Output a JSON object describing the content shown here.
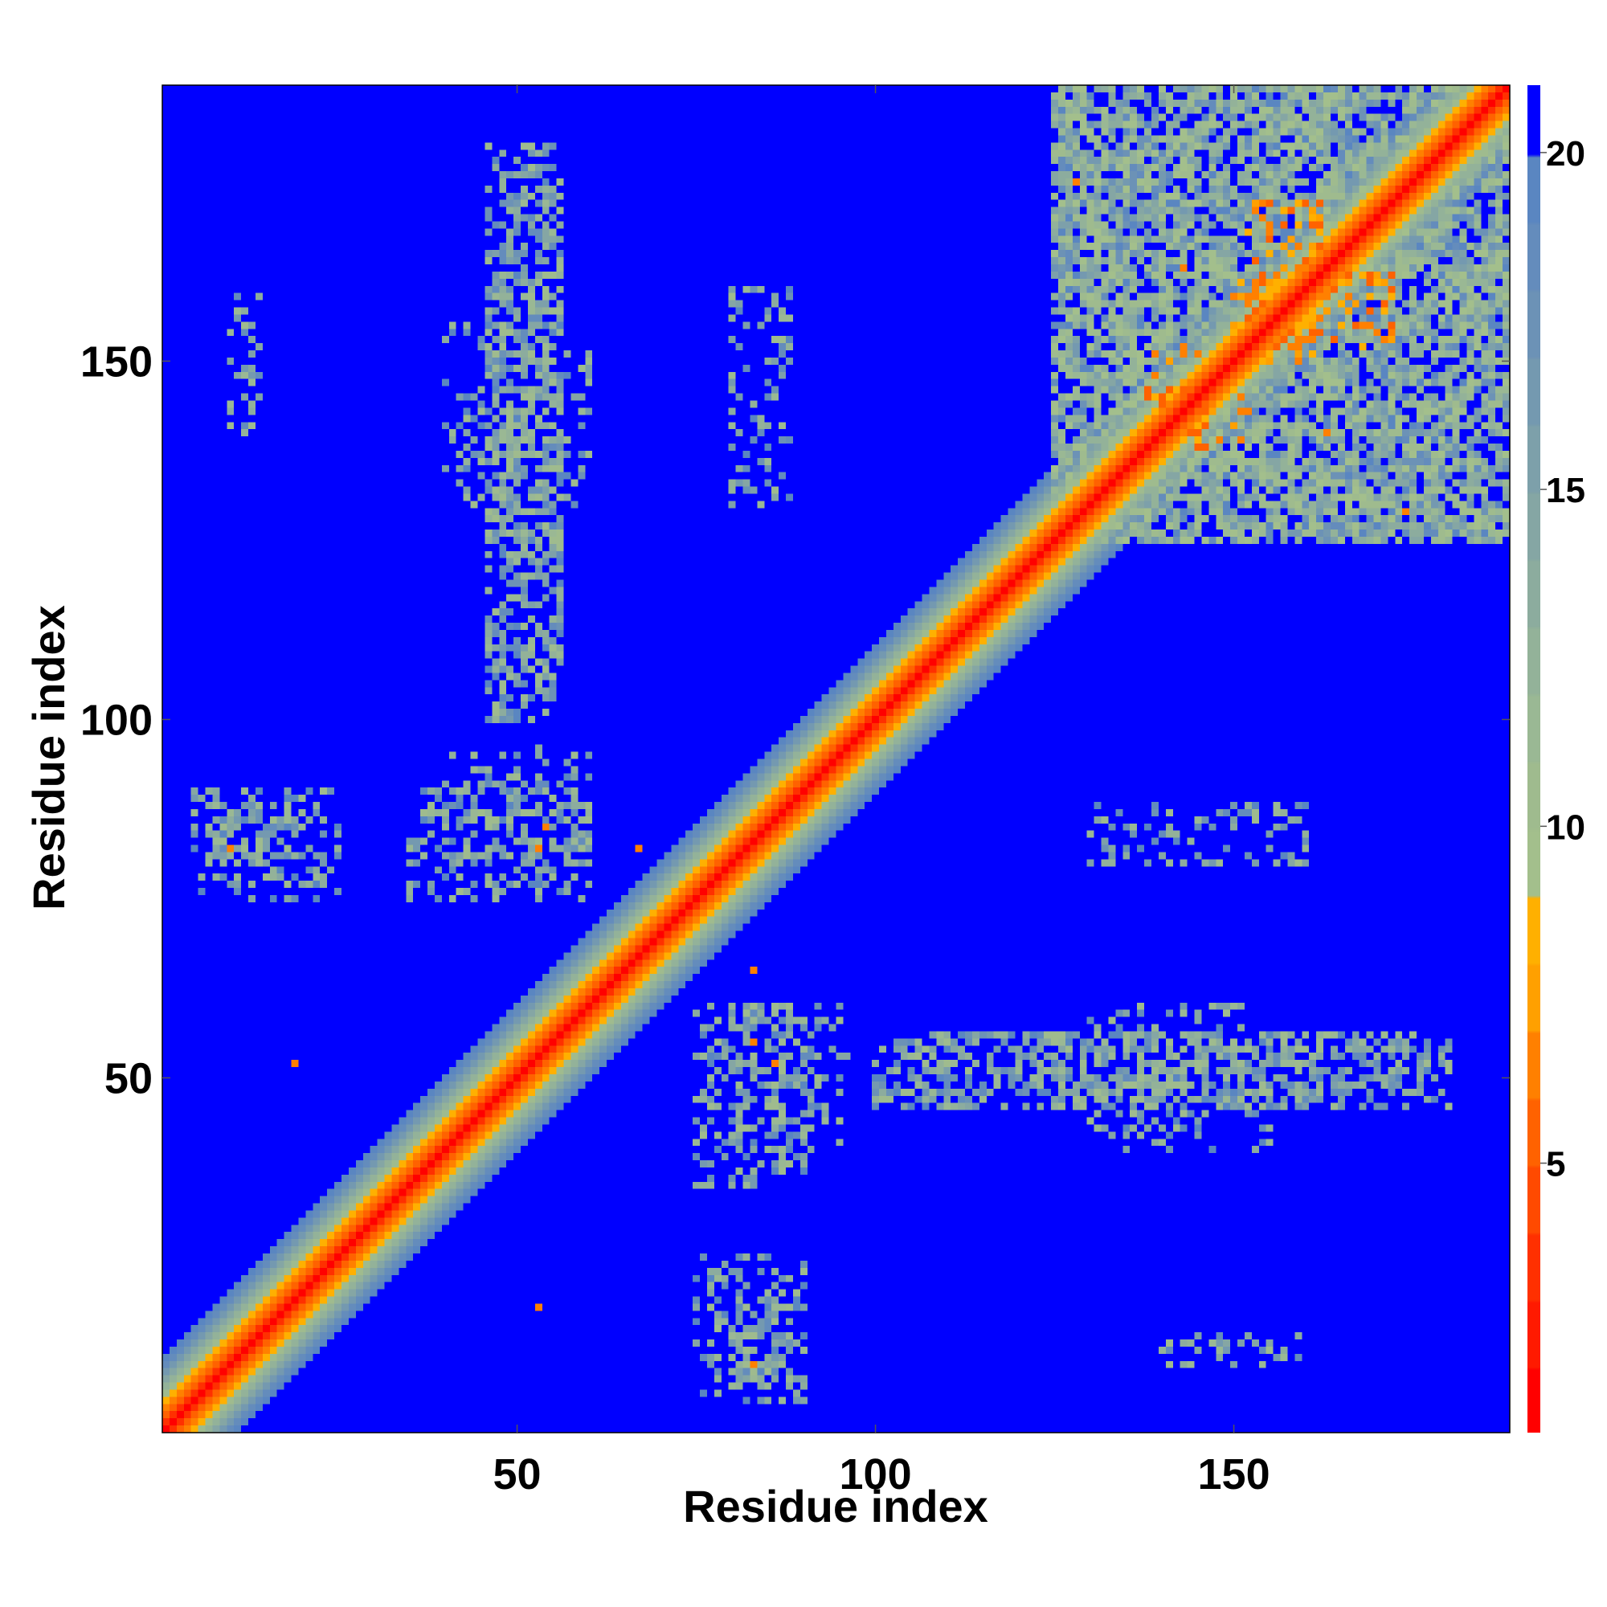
{
  "chart_data": {
    "type": "heatmap",
    "title": "",
    "xlabel": "Residue index",
    "ylabel": "Residue index",
    "n_residues": 188,
    "xlim": [
      0.5,
      188.5
    ],
    "ylim": [
      0.5,
      188.5
    ],
    "x_ticks": [
      50,
      100,
      150
    ],
    "y_ticks": [
      50,
      100,
      150
    ],
    "colorbar": {
      "min": 1,
      "max": 21,
      "ticks": [
        5,
        10,
        15,
        20
      ],
      "levels": [
        {
          "from": 1,
          "to": 2,
          "color": "#ff0000"
        },
        {
          "from": 2,
          "to": 3,
          "color": "#ff1a00"
        },
        {
          "from": 3,
          "to": 4,
          "color": "#ff3000"
        },
        {
          "from": 4,
          "to": 5,
          "color": "#ff4a00"
        },
        {
          "from": 5,
          "to": 6,
          "color": "#ff6200"
        },
        {
          "from": 6,
          "to": 7,
          "color": "#ff8000"
        },
        {
          "from": 7,
          "to": 8,
          "color": "#ffa000"
        },
        {
          "from": 8,
          "to": 9,
          "color": "#ffb000"
        },
        {
          "from": 9,
          "to": 10,
          "color": "#a3bf8c"
        },
        {
          "from": 10,
          "to": 11,
          "color": "#9fbb8e"
        },
        {
          "from": 11,
          "to": 12,
          "color": "#9ab894"
        },
        {
          "from": 12,
          "to": 13,
          "color": "#93b299"
        },
        {
          "from": 13,
          "to": 14,
          "color": "#8cac9e"
        },
        {
          "from": 14,
          "to": 15,
          "color": "#85a6a4"
        },
        {
          "from": 15,
          "to": 16,
          "color": "#7da0aa"
        },
        {
          "from": 16,
          "to": 17,
          "color": "#7499b0"
        },
        {
          "from": 17,
          "to": 18,
          "color": "#6c92b6"
        },
        {
          "from": 18,
          "to": 19,
          "color": "#648cbc"
        },
        {
          "from": 19,
          "to": 20,
          "color": "#5a86c1"
        },
        {
          "from": 20,
          "to": 21,
          "color": "#0000ff"
        }
      ]
    },
    "diagonal_profile": [
      {
        "offset": 0,
        "value": 1.5
      },
      {
        "offset": 1,
        "value": 3.8
      },
      {
        "offset": 2,
        "value": 5.5
      },
      {
        "offset": 3,
        "value": 6.5
      },
      {
        "offset": 4,
        "value": 8.5
      },
      {
        "offset": 5,
        "value": 10
      },
      {
        "offset": 6,
        "value": 12
      },
      {
        "offset": 7,
        "value": 14
      },
      {
        "offset": 8,
        "value": 16
      },
      {
        "offset": 9,
        "value": 18
      },
      {
        "offset": 10,
        "value": 19.5
      }
    ],
    "contact_clusters": [
      {
        "i_range": [
          125,
          188
        ],
        "j_range": [
          125,
          188
        ],
        "value_range": [
          9,
          20
        ],
        "note": "dense contact region, upper-right domain"
      },
      {
        "i_range": [
          152,
          162
        ],
        "j_range": [
          150,
          172
        ],
        "value_range": [
          5,
          9
        ],
        "note": "orange contacts near residues 152-172"
      },
      {
        "i_range": [
          138,
          146
        ],
        "j_range": [
          140,
          152
        ],
        "value_range": [
          5,
          9
        ]
      },
      {
        "i_range": [
          8,
          20
        ],
        "j_range": [
          80,
          88
        ],
        "value_range": [
          10,
          20
        ]
      },
      {
        "i_range": [
          40,
          60
        ],
        "j_range": [
          80,
          96
        ],
        "value_range": [
          10,
          20
        ]
      },
      {
        "i_range": [
          40,
          60
        ],
        "j_range": [
          130,
          155
        ],
        "value_range": [
          10,
          20
        ]
      },
      {
        "i_range": [
          75,
          90
        ],
        "j_range": [
          5,
          25
        ],
        "value_range": [
          10,
          20
        ]
      },
      {
        "i_range": [
          75,
          90
        ],
        "j_range": [
          35,
          60
        ],
        "value_range": [
          10,
          20
        ]
      },
      {
        "i_range": [
          100,
          180
        ],
        "j_range": [
          46,
          56
        ],
        "value_range": [
          10,
          20
        ]
      },
      {
        "i_range": [
          130,
          160
        ],
        "j_range": [
          80,
          88
        ],
        "value_range": [
          10,
          20
        ]
      },
      {
        "i_range": [
          140,
          160
        ],
        "j_range": [
          10,
          14
        ],
        "value_range": [
          10,
          20
        ]
      }
    ],
    "isolated_contacts": [
      {
        "i": 10,
        "j": 82,
        "value": 6
      },
      {
        "i": 19,
        "j": 52,
        "value": 6
      },
      {
        "i": 53,
        "j": 18,
        "value": 6
      },
      {
        "i": 53,
        "j": 82,
        "value": 6
      },
      {
        "i": 54,
        "j": 85,
        "value": 6
      },
      {
        "i": 67,
        "j": 82,
        "value": 6
      },
      {
        "i": 83,
        "j": 65,
        "value": 6
      },
      {
        "i": 83,
        "j": 55,
        "value": 6
      },
      {
        "i": 83,
        "j": 10,
        "value": 6
      },
      {
        "i": 86,
        "j": 52,
        "value": 6
      },
      {
        "i": 128,
        "j": 175,
        "value": 6
      },
      {
        "i": 174,
        "j": 129,
        "value": 6
      },
      {
        "i": 163,
        "j": 140,
        "value": 6
      },
      {
        "i": 143,
        "j": 163,
        "value": 6
      }
    ]
  }
}
